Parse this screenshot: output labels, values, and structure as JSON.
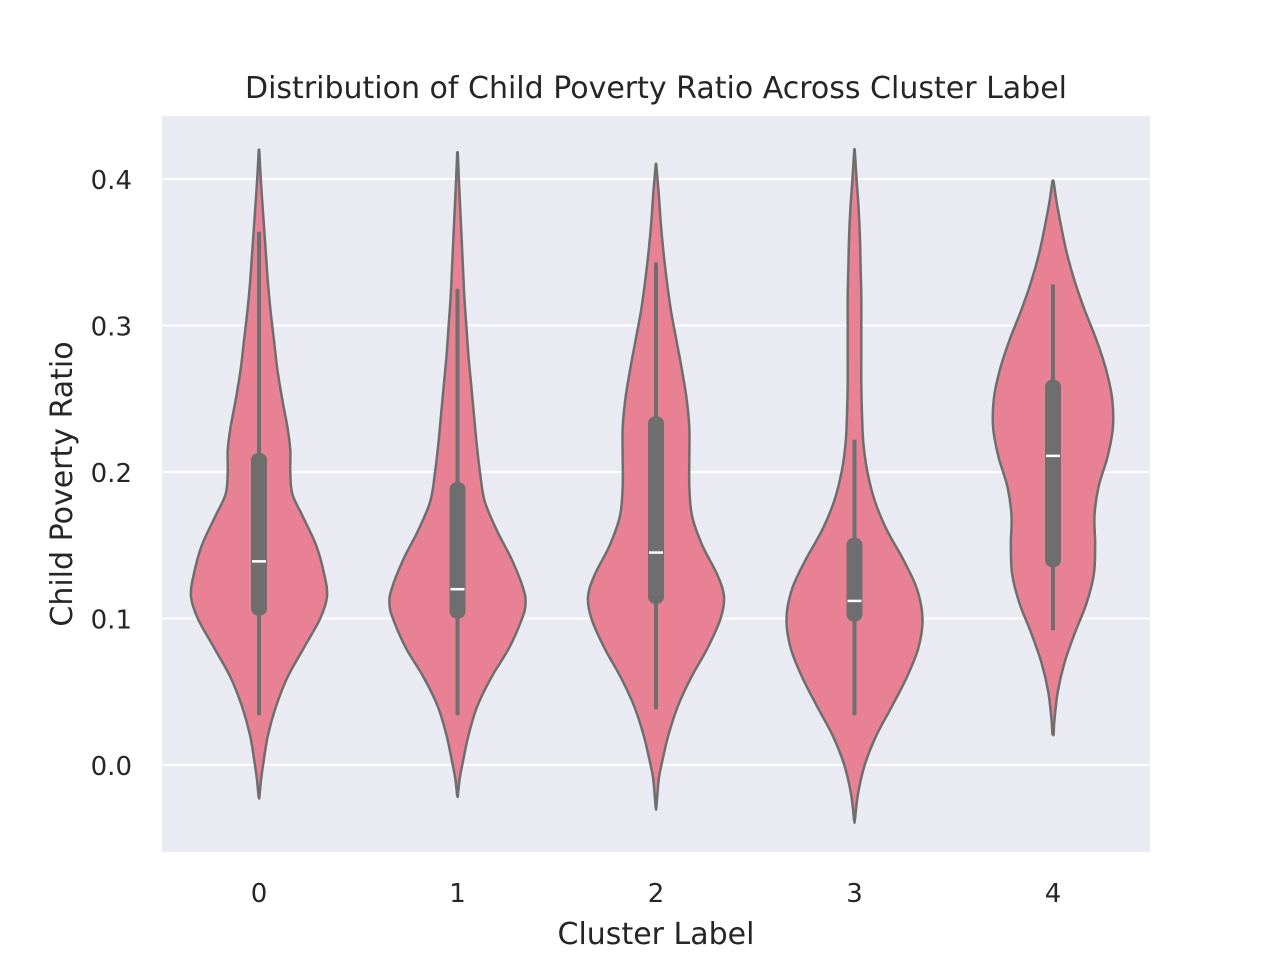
{
  "chart_data": {
    "type": "violin",
    "title": "Distribution of Child Poverty Ratio Across Cluster Label",
    "xlabel": "Cluster Label",
    "ylabel": "Child Poverty Ratio",
    "ylim": [
      -0.06,
      0.442
    ],
    "yticks": [
      0.0,
      0.1,
      0.2,
      0.3,
      0.4
    ],
    "ytick_labels": [
      "0.0",
      "0.1",
      "0.2",
      "0.3",
      "0.4"
    ],
    "categories": [
      "0",
      "1",
      "2",
      "3",
      "4"
    ],
    "grid": true,
    "colors": {
      "violin_fill": "#e88194",
      "violin_edge": "#6e6e6e",
      "box": "#6e6e6e",
      "median": "#ffffff",
      "axes_bg": "#eaeaf2",
      "grid": "#ffffff"
    },
    "violins": [
      {
        "category": "0",
        "whisker_low": 0.034,
        "q1": 0.102,
        "median": 0.139,
        "q3": 0.213,
        "whisker_high": 0.364,
        "density": [
          [
            -0.022,
            0.005
          ],
          [
            -0.01,
            0.03
          ],
          [
            0.0,
            0.06
          ],
          [
            0.02,
            0.13
          ],
          [
            0.04,
            0.25
          ],
          [
            0.06,
            0.42
          ],
          [
            0.08,
            0.66
          ],
          [
            0.1,
            0.9
          ],
          [
            0.115,
            1.0
          ],
          [
            0.13,
            0.96
          ],
          [
            0.15,
            0.84
          ],
          [
            0.17,
            0.64
          ],
          [
            0.185,
            0.49
          ],
          [
            0.2,
            0.46
          ],
          [
            0.215,
            0.46
          ],
          [
            0.23,
            0.42
          ],
          [
            0.25,
            0.34
          ],
          [
            0.27,
            0.27
          ],
          [
            0.29,
            0.22
          ],
          [
            0.31,
            0.17
          ],
          [
            0.33,
            0.13
          ],
          [
            0.35,
            0.1
          ],
          [
            0.37,
            0.07
          ],
          [
            0.39,
            0.04
          ],
          [
            0.405,
            0.02
          ],
          [
            0.419,
            0.005
          ]
        ]
      },
      {
        "category": "1",
        "whisker_low": 0.034,
        "q1": 0.1,
        "median": 0.12,
        "q3": 0.193,
        "whisker_high": 0.325,
        "density": [
          [
            -0.021,
            0.005
          ],
          [
            -0.01,
            0.03
          ],
          [
            0.0,
            0.07
          ],
          [
            0.02,
            0.16
          ],
          [
            0.04,
            0.29
          ],
          [
            0.06,
            0.5
          ],
          [
            0.08,
            0.76
          ],
          [
            0.1,
            0.95
          ],
          [
            0.11,
            1.0
          ],
          [
            0.12,
            0.97
          ],
          [
            0.14,
            0.8
          ],
          [
            0.16,
            0.58
          ],
          [
            0.18,
            0.4
          ],
          [
            0.2,
            0.33
          ],
          [
            0.22,
            0.28
          ],
          [
            0.24,
            0.24
          ],
          [
            0.26,
            0.2
          ],
          [
            0.28,
            0.16
          ],
          [
            0.3,
            0.13
          ],
          [
            0.32,
            0.1
          ],
          [
            0.34,
            0.08
          ],
          [
            0.36,
            0.06
          ],
          [
            0.38,
            0.04
          ],
          [
            0.4,
            0.02
          ],
          [
            0.417,
            0.005
          ]
        ]
      },
      {
        "category": "2",
        "whisker_low": 0.038,
        "q1": 0.11,
        "median": 0.145,
        "q3": 0.238,
        "whisker_high": 0.343,
        "density": [
          [
            -0.029,
            0.005
          ],
          [
            -0.01,
            0.04
          ],
          [
            0.0,
            0.08
          ],
          [
            0.02,
            0.18
          ],
          [
            0.04,
            0.32
          ],
          [
            0.06,
            0.52
          ],
          [
            0.08,
            0.76
          ],
          [
            0.1,
            0.95
          ],
          [
            0.115,
            1.0
          ],
          [
            0.13,
            0.9
          ],
          [
            0.15,
            0.68
          ],
          [
            0.17,
            0.53
          ],
          [
            0.19,
            0.49
          ],
          [
            0.21,
            0.49
          ],
          [
            0.23,
            0.49
          ],
          [
            0.25,
            0.45
          ],
          [
            0.27,
            0.38
          ],
          [
            0.29,
            0.3
          ],
          [
            0.31,
            0.22
          ],
          [
            0.33,
            0.16
          ],
          [
            0.35,
            0.11
          ],
          [
            0.37,
            0.07
          ],
          [
            0.39,
            0.04
          ],
          [
            0.409,
            0.005
          ]
        ]
      },
      {
        "category": "3",
        "whisker_low": 0.034,
        "q1": 0.098,
        "median": 0.112,
        "q3": 0.155,
        "whisker_high": 0.222,
        "density": [
          [
            -0.038,
            0.005
          ],
          [
            -0.02,
            0.05
          ],
          [
            0.0,
            0.15
          ],
          [
            0.02,
            0.32
          ],
          [
            0.04,
            0.55
          ],
          [
            0.06,
            0.77
          ],
          [
            0.08,
            0.94
          ],
          [
            0.1,
            1.0
          ],
          [
            0.12,
            0.92
          ],
          [
            0.14,
            0.72
          ],
          [
            0.16,
            0.48
          ],
          [
            0.18,
            0.3
          ],
          [
            0.2,
            0.19
          ],
          [
            0.22,
            0.13
          ],
          [
            0.24,
            0.11
          ],
          [
            0.26,
            0.1
          ],
          [
            0.28,
            0.1
          ],
          [
            0.3,
            0.1
          ],
          [
            0.32,
            0.1
          ],
          [
            0.34,
            0.09
          ],
          [
            0.36,
            0.08
          ],
          [
            0.38,
            0.06
          ],
          [
            0.4,
            0.03
          ],
          [
            0.419,
            0.005
          ]
        ]
      },
      {
        "category": "4",
        "whisker_low": 0.092,
        "q1": 0.135,
        "median": 0.211,
        "q3": 0.263,
        "whisker_high": 0.328,
        "density": [
          [
            0.021,
            0.01
          ],
          [
            0.03,
            0.02
          ],
          [
            0.05,
            0.07
          ],
          [
            0.07,
            0.17
          ],
          [
            0.09,
            0.32
          ],
          [
            0.11,
            0.49
          ],
          [
            0.13,
            0.6
          ],
          [
            0.15,
            0.62
          ],
          [
            0.17,
            0.61
          ],
          [
            0.19,
            0.67
          ],
          [
            0.21,
            0.8
          ],
          [
            0.23,
            0.88
          ],
          [
            0.25,
            0.87
          ],
          [
            0.27,
            0.78
          ],
          [
            0.29,
            0.64
          ],
          [
            0.31,
            0.47
          ],
          [
            0.33,
            0.32
          ],
          [
            0.35,
            0.2
          ],
          [
            0.37,
            0.11
          ],
          [
            0.385,
            0.05
          ],
          [
            0.398,
            0.01
          ]
        ]
      }
    ]
  }
}
